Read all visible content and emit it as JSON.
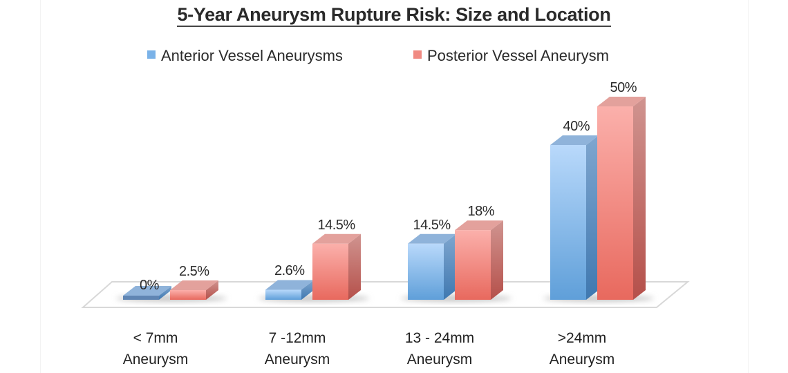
{
  "chart_data": {
    "type": "bar",
    "style": "3d-clustered-column",
    "title": "5-Year Aneurysm Rupture Risk: Size and Location",
    "xlabel": "",
    "ylabel": "",
    "ylim": [
      0,
      50
    ],
    "grid": false,
    "legend_position": "top",
    "categories": [
      "< 7mm Aneurysm",
      "7 -12mm Aneurysm",
      "13 - 24mm Aneurysm",
      ">24mm Aneurysm"
    ],
    "series": [
      {
        "name": "Anterior Vessel Aneurysms",
        "color": "#6fa8e0",
        "values": [
          0,
          2.6,
          14.5,
          40
        ],
        "labels": [
          "0%",
          "2.6%",
          "14.5%",
          "40%"
        ]
      },
      {
        "name": "Posterior Vessel Aneurysm",
        "color": "#ee7f76",
        "values": [
          2.5,
          14.5,
          18,
          50
        ],
        "labels": [
          "2.5%",
          "14.5%",
          "18%",
          "50%"
        ]
      }
    ]
  },
  "title": "5-Year Aneurysm Rupture Risk: Size and Location",
  "legend": {
    "items": [
      {
        "label": "Anterior Vessel Aneurysms",
        "color": "#7ab2e8"
      },
      {
        "label": "Posterior Vessel Aneurysm",
        "color": "#f08a82"
      }
    ]
  },
  "categories": [
    {
      "line1": "< 7mm",
      "line2": "Aneurysm"
    },
    {
      "line1": "7 -12mm",
      "line2": "Aneurysm"
    },
    {
      "line1": "13 - 24mm",
      "line2": "Aneurysm"
    },
    {
      "line1": ">24mm",
      "line2": "Aneurysm"
    }
  ],
  "value_labels": {
    "anterior": [
      "0%",
      "2.6%",
      "14.5%",
      "40%"
    ],
    "posterior": [
      "2.5%",
      "14.5%",
      "18%",
      "50%"
    ]
  }
}
